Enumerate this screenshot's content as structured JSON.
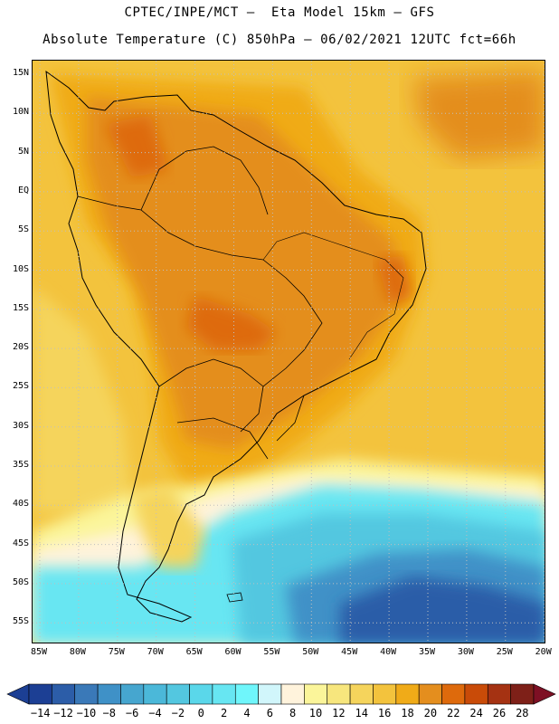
{
  "title": {
    "line1": "CPTEC/INPE/MCT –  Eta Model 15km – GFS",
    "line2": "Absolute Temperature (C) 850hPa – 06/02/2021 12UTC fct=66h"
  },
  "map": {
    "latitude_labels": [
      "15N",
      "10N",
      "5N",
      "EQ",
      "5S",
      "10S",
      "15S",
      "20S",
      "25S",
      "30S",
      "35S",
      "40S",
      "45S",
      "50S",
      "55S"
    ],
    "longitude_labels": [
      "85W",
      "80W",
      "75W",
      "70W",
      "65W",
      "60W",
      "55W",
      "50W",
      "45W",
      "40W",
      "35W",
      "30W",
      "25W",
      "20W"
    ]
  },
  "legend": {
    "labels": [
      "-14",
      "-12",
      "-10",
      "-8",
      "-6",
      "-4",
      "-2",
      "0",
      "2",
      "4",
      "6",
      "8",
      "10",
      "12",
      "14",
      "16",
      "18",
      "20",
      "22",
      "24",
      "26",
      "28"
    ],
    "colors": [
      "#1c3f94",
      "#2c5da8",
      "#3a79b8",
      "#3f91c7",
      "#46a6cf",
      "#4bb8d9",
      "#53c7e0",
      "#5ad7ea",
      "#67e6f2",
      "#6ff6fb",
      "#d1f6fb",
      "#fff3dc",
      "#fbf59a",
      "#f7e67d",
      "#f5d45c",
      "#f3c33d",
      "#f0ab18",
      "#e48e1e",
      "#de6a0c",
      "#c94b08",
      "#a53212",
      "#7e2018"
    ],
    "under_color": "#1c3f94",
    "over_color": "#7e1024"
  }
}
